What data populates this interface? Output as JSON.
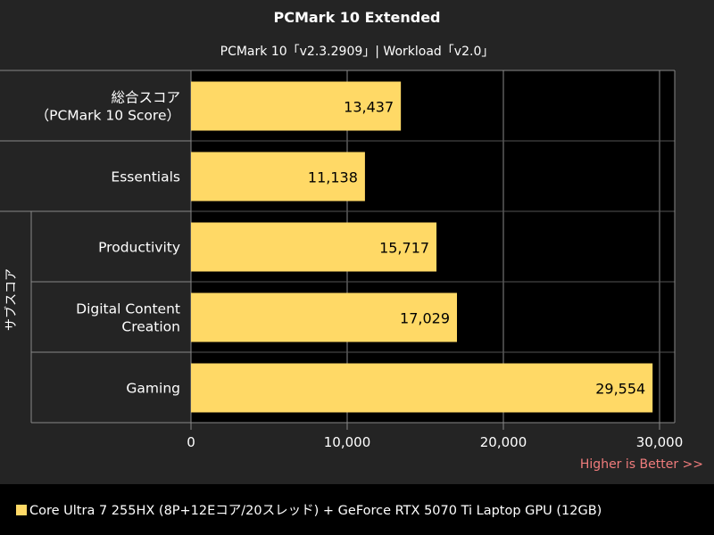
{
  "chart_data": {
    "type": "bar",
    "orientation": "horizontal",
    "title": "PCMark 10 Extended",
    "subtitle": "PCMark 10「v2.3.2909」| Workload「v2.0」",
    "group_label": "サブスコア",
    "categories": [
      [
        "総合スコア",
        "（PCMark 10 Score）"
      ],
      [
        "Essentials"
      ],
      [
        "Productivity"
      ],
      [
        "Digital Content",
        "Creation"
      ],
      [
        "Gaming"
      ]
    ],
    "values": [
      13437,
      11138,
      15717,
      17029,
      29554
    ],
    "value_labels": [
      "13,437",
      "11,138",
      "15,717",
      "17,029",
      "29,554"
    ],
    "xlim": [
      0,
      30000
    ],
    "xticks": [
      0,
      10000,
      20000,
      30000
    ],
    "xtick_labels": [
      "0",
      "10,000",
      "20,000",
      "30,000"
    ],
    "grid": true,
    "note": "Higher is Better >>",
    "legend": "Core Ultra 7 255HX (8P+12Eコア/20スレッド) + GeForce RTX 5070 Ti Laptop GPU (12GB)",
    "legend_position": "bottom",
    "colors": {
      "bar": "#ffd966",
      "background": "#242424",
      "plot": "#000000",
      "grid": "#888888",
      "note": "#f07c7c"
    }
  }
}
